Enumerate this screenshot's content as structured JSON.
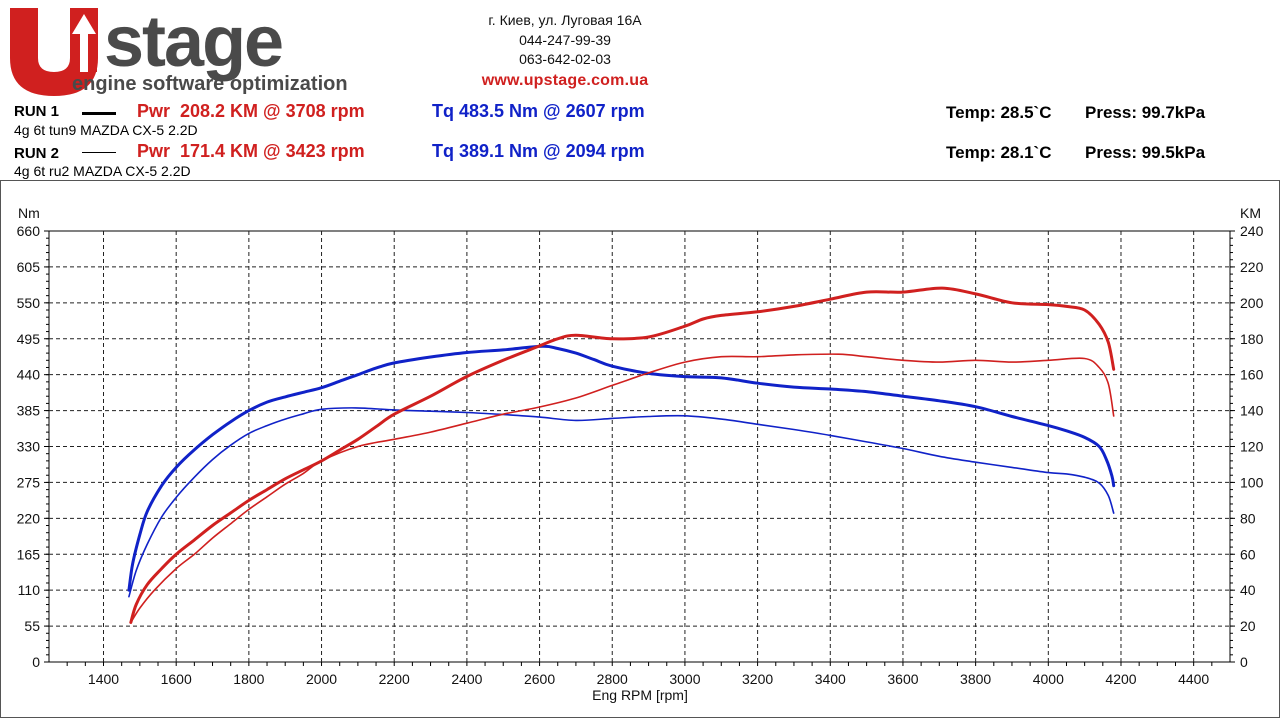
{
  "brand": {
    "logo_letters": "Up",
    "logo_word": "stage",
    "tagline": "engine software optimization",
    "address": "г. Киев, ул. Луговая 16А",
    "phone1": "044-247-99-39",
    "phone2": "063-642-02-03",
    "website": "www.upstage.com.ua",
    "colors": {
      "red": "#d0201f",
      "gray": "#4a4a4a"
    }
  },
  "runs": [
    {
      "label": "RUN 1",
      "desc": "4g 6t tun9 MAZDA CX-5 2.2D",
      "pwr": "Pwr  208.2 KM @ 3708 rpm",
      "tq": "Tq 483.5 Nm @ 2607 rpm",
      "temp": "Temp: 28.5`C",
      "press": "Press: 99.7kPa"
    },
    {
      "label": "RUN 2",
      "desc": "4g 6t ru2 MAZDA CX-5 2.2D",
      "pwr": "Pwr  171.4 KM @ 3423 rpm",
      "tq": "Tq 389.1 Nm @ 2094 rpm",
      "temp": "Temp: 28.1`C",
      "press": "Press: 99.5kPa"
    }
  ],
  "chart_data": {
    "type": "line",
    "xlabel": "Eng RPM [rpm]",
    "ylabel_left": "Nm",
    "ylabel_right": "KM",
    "xlim": [
      1250,
      4500
    ],
    "ylim_left": [
      0,
      660
    ],
    "ylim_right": [
      0,
      240
    ],
    "x_ticks": [
      1400,
      1600,
      1800,
      2000,
      2200,
      2400,
      2600,
      2800,
      3000,
      3200,
      3400,
      3600,
      3800,
      4000,
      4200,
      4400
    ],
    "y_ticks_left": [
      0,
      55,
      110,
      165,
      220,
      275,
      330,
      385,
      440,
      495,
      550,
      605,
      660
    ],
    "y_ticks_right": [
      0,
      20,
      40,
      60,
      80,
      100,
      120,
      140,
      160,
      180,
      200,
      220,
      240
    ],
    "grid": true,
    "series": [
      {
        "run": 1,
        "kind": "torque",
        "axis": "left",
        "color": "#1022c8",
        "width": 3,
        "points": [
          [
            1470,
            110
          ],
          [
            1480,
            150
          ],
          [
            1500,
            195
          ],
          [
            1520,
            230
          ],
          [
            1560,
            270
          ],
          [
            1600,
            298
          ],
          [
            1650,
            325
          ],
          [
            1700,
            348
          ],
          [
            1750,
            368
          ],
          [
            1800,
            385
          ],
          [
            1850,
            398
          ],
          [
            1900,
            406
          ],
          [
            1950,
            413
          ],
          [
            2000,
            420
          ],
          [
            2050,
            430
          ],
          [
            2100,
            440
          ],
          [
            2150,
            450
          ],
          [
            2200,
            458
          ],
          [
            2300,
            467
          ],
          [
            2400,
            474
          ],
          [
            2500,
            478
          ],
          [
            2607,
            483.5
          ],
          [
            2650,
            480
          ],
          [
            2700,
            473
          ],
          [
            2750,
            463
          ],
          [
            2800,
            453
          ],
          [
            2900,
            442
          ],
          [
            3000,
            437
          ],
          [
            3100,
            435
          ],
          [
            3200,
            427
          ],
          [
            3300,
            421
          ],
          [
            3400,
            418
          ],
          [
            3500,
            414
          ],
          [
            3600,
            407
          ],
          [
            3700,
            400
          ],
          [
            3800,
            391
          ],
          [
            3900,
            376
          ],
          [
            4000,
            362
          ],
          [
            4050,
            354
          ],
          [
            4100,
            344
          ],
          [
            4140,
            330
          ],
          [
            4160,
            310
          ],
          [
            4175,
            285
          ],
          [
            4180,
            270
          ]
        ]
      },
      {
        "run": 2,
        "kind": "torque",
        "axis": "left",
        "color": "#1022c8",
        "width": 1.6,
        "points": [
          [
            1470,
            100
          ],
          [
            1490,
            140
          ],
          [
            1520,
            180
          ],
          [
            1560,
            222
          ],
          [
            1600,
            252
          ],
          [
            1650,
            283
          ],
          [
            1700,
            310
          ],
          [
            1750,
            332
          ],
          [
            1800,
            350
          ],
          [
            1850,
            362
          ],
          [
            1900,
            372
          ],
          [
            1950,
            380
          ],
          [
            2000,
            387
          ],
          [
            2094,
            389.1
          ],
          [
            2200,
            386
          ],
          [
            2300,
            384
          ],
          [
            2400,
            382
          ],
          [
            2500,
            379
          ],
          [
            2600,
            375
          ],
          [
            2700,
            370
          ],
          [
            2800,
            373
          ],
          [
            2900,
            376
          ],
          [
            3000,
            377
          ],
          [
            3100,
            372
          ],
          [
            3200,
            364
          ],
          [
            3300,
            356
          ],
          [
            3400,
            347
          ],
          [
            3500,
            337
          ],
          [
            3600,
            327
          ],
          [
            3700,
            315
          ],
          [
            3800,
            306
          ],
          [
            3900,
            298
          ],
          [
            4000,
            290
          ],
          [
            4050,
            288
          ],
          [
            4100,
            283
          ],
          [
            4140,
            274
          ],
          [
            4165,
            255
          ],
          [
            4180,
            228
          ]
        ]
      },
      {
        "run": 1,
        "kind": "power",
        "axis": "right",
        "color": "#d0201f",
        "width": 3,
        "points": [
          [
            1475,
            22
          ],
          [
            1490,
            32
          ],
          [
            1520,
            43
          ],
          [
            1560,
            52
          ],
          [
            1600,
            60
          ],
          [
            1650,
            68
          ],
          [
            1700,
            76
          ],
          [
            1750,
            83
          ],
          [
            1800,
            90
          ],
          [
            1850,
            96
          ],
          [
            1900,
            102
          ],
          [
            1950,
            107
          ],
          [
            2000,
            112
          ],
          [
            2050,
            118
          ],
          [
            2100,
            124
          ],
          [
            2150,
            131
          ],
          [
            2200,
            138
          ],
          [
            2300,
            148
          ],
          [
            2400,
            159
          ],
          [
            2500,
            168
          ],
          [
            2600,
            176
          ],
          [
            2650,
            180
          ],
          [
            2700,
            182
          ],
          [
            2800,
            180
          ],
          [
            2900,
            181
          ],
          [
            3000,
            187
          ],
          [
            3050,
            191
          ],
          [
            3100,
            193
          ],
          [
            3200,
            195
          ],
          [
            3300,
            198
          ],
          [
            3400,
            202
          ],
          [
            3500,
            206
          ],
          [
            3600,
            206
          ],
          [
            3708,
            208.2
          ],
          [
            3800,
            205
          ],
          [
            3900,
            200
          ],
          [
            4000,
            199
          ],
          [
            4050,
            198
          ],
          [
            4100,
            196
          ],
          [
            4140,
            188
          ],
          [
            4165,
            178
          ],
          [
            4180,
            163
          ]
        ]
      },
      {
        "run": 2,
        "kind": "power",
        "axis": "right",
        "color": "#d0201f",
        "width": 1.6,
        "points": [
          [
            1475,
            22
          ],
          [
            1500,
            30
          ],
          [
            1540,
            40
          ],
          [
            1600,
            52
          ],
          [
            1650,
            60
          ],
          [
            1700,
            69
          ],
          [
            1750,
            77
          ],
          [
            1800,
            85
          ],
          [
            1850,
            92
          ],
          [
            1900,
            99
          ],
          [
            1950,
            105
          ],
          [
            2000,
            112
          ],
          [
            2100,
            120
          ],
          [
            2200,
            124
          ],
          [
            2300,
            128
          ],
          [
            2400,
            133
          ],
          [
            2500,
            138
          ],
          [
            2600,
            142
          ],
          [
            2700,
            147
          ],
          [
            2800,
            154
          ],
          [
            2900,
            161
          ],
          [
            3000,
            167
          ],
          [
            3100,
            170
          ],
          [
            3200,
            170
          ],
          [
            3300,
            171
          ],
          [
            3423,
            171.4
          ],
          [
            3500,
            170
          ],
          [
            3600,
            168
          ],
          [
            3700,
            167
          ],
          [
            3800,
            168
          ],
          [
            3900,
            167
          ],
          [
            4000,
            168
          ],
          [
            4100,
            169
          ],
          [
            4140,
            164
          ],
          [
            4165,
            155
          ],
          [
            4180,
            137
          ]
        ]
      }
    ]
  }
}
